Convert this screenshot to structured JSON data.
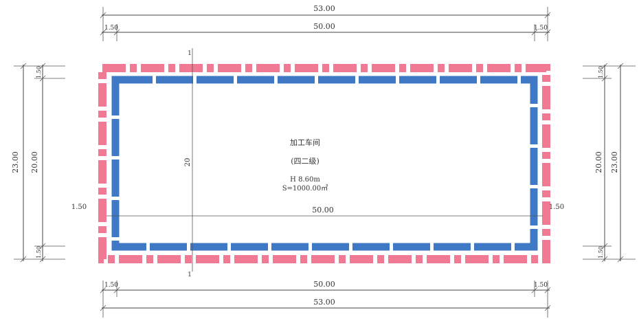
{
  "dimensions": {
    "top_total": "53.00",
    "top_inner": "50.00",
    "top_left_margin": "1.50",
    "top_right_margin": "1.50",
    "bottom_inner": "50.00",
    "bottom_total": "53.00",
    "bottom_left_margin": "1.50",
    "bottom_right_margin": "1.50",
    "left_total": "23.00",
    "left_inner": "20.00",
    "left_top_margin": "1.50",
    "left_bottom_margin": "1.50",
    "right_total": "23.00",
    "right_inner": "20.00",
    "right_top_margin": "1.50",
    "right_bottom_margin": "1.50",
    "mid_left": "1.50",
    "mid_right": "1.50",
    "mid_span": "50.00",
    "section_top": "1",
    "section_bottom": "1",
    "section_mid": "20"
  },
  "building": {
    "name": "加工车间",
    "number": "(四二级)",
    "height": "H 8.60m",
    "area": "S=1000.00㎡"
  },
  "colors": {
    "outer_band": "#f07a93",
    "inner_band": "#3f78c4",
    "line": "#444444"
  }
}
